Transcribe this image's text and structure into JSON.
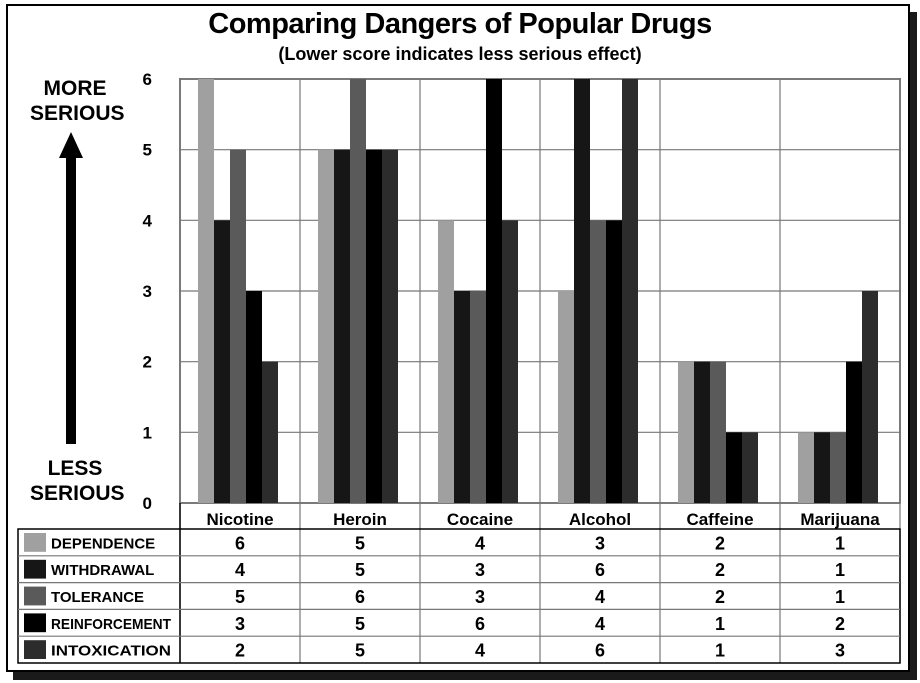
{
  "title": "Comparing Dangers of Popular Drugs",
  "subtitle": "(Lower score indicates less serious effect)",
  "side_labels": {
    "top": [
      "MORE",
      "SERIOUS"
    ],
    "bottom": [
      "LESS",
      "SERIOUS"
    ]
  },
  "chart_data": {
    "type": "bar",
    "title": "Comparing Dangers of Popular Drugs",
    "subtitle": "(Lower score indicates less serious effect)",
    "categories": [
      "Nicotine",
      "Heroin",
      "Cocaine",
      "Alcohol",
      "Caffeine",
      "Marijuana"
    ],
    "ylim": [
      0,
      6
    ],
    "yticks": [
      0,
      1,
      2,
      3,
      4,
      5,
      6
    ],
    "grid": true,
    "legend": "table-below",
    "series": [
      {
        "name": "DEPENDENCE",
        "color": "#a0a0a0",
        "values": [
          6,
          5,
          4,
          3,
          2,
          1
        ]
      },
      {
        "name": "WITHDRAWAL",
        "color": "#161616",
        "values": [
          4,
          5,
          3,
          6,
          2,
          1
        ]
      },
      {
        "name": "TOLERANCE",
        "color": "#5a5a5a",
        "values": [
          5,
          6,
          3,
          4,
          2,
          1
        ]
      },
      {
        "name": "REINFORCEMENT",
        "color": "#000000",
        "values": [
          3,
          5,
          6,
          4,
          1,
          2
        ]
      },
      {
        "name": "INTOXICATION",
        "color": "#2c2c2c",
        "values": [
          2,
          5,
          4,
          6,
          1,
          3
        ]
      }
    ]
  }
}
